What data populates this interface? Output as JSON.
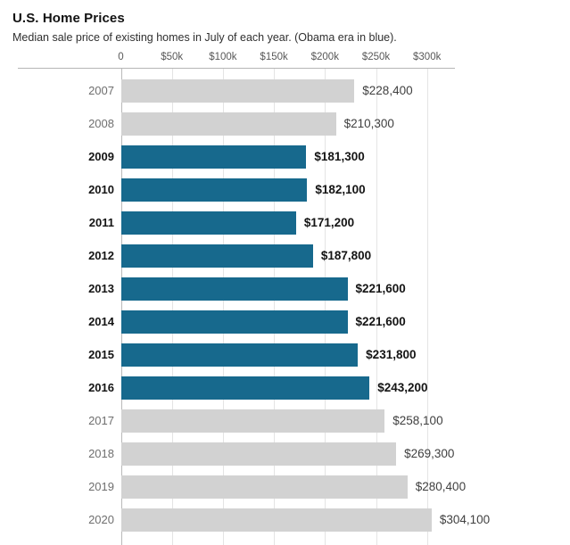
{
  "chart_data": {
    "type": "bar",
    "orientation": "horizontal",
    "title": "U.S. Home Prices",
    "subtitle": "Median sale price of existing homes in July of each year. (Obama era in blue).",
    "highlight_meaning": "Obama era in blue",
    "x_axis": {
      "ticks": [
        {
          "value": 0,
          "label": "0"
        },
        {
          "value": 50000,
          "label": "$50k"
        },
        {
          "value": 100000,
          "label": "$100k"
        },
        {
          "value": 150000,
          "label": "$150k"
        },
        {
          "value": 200000,
          "label": "$200k"
        },
        {
          "value": 250000,
          "label": "$250k"
        },
        {
          "value": 300000,
          "label": "$300k"
        }
      ],
      "grid": true
    },
    "rows": [
      {
        "year": "2007",
        "value": 228400,
        "label": "$228,400",
        "highlighted": false
      },
      {
        "year": "2008",
        "value": 210300,
        "label": "$210,300",
        "highlighted": false
      },
      {
        "year": "2009",
        "value": 181300,
        "label": "$181,300",
        "highlighted": true
      },
      {
        "year": "2010",
        "value": 182100,
        "label": "$182,100",
        "highlighted": true
      },
      {
        "year": "2011",
        "value": 171200,
        "label": "$171,200",
        "highlighted": true
      },
      {
        "year": "2012",
        "value": 187800,
        "label": "$187,800",
        "highlighted": true
      },
      {
        "year": "2013",
        "value": 221600,
        "label": "$221,600",
        "highlighted": true
      },
      {
        "year": "2014",
        "value": 221600,
        "label": "$221,600",
        "highlighted": true
      },
      {
        "year": "2015",
        "value": 231800,
        "label": "$231,800",
        "highlighted": true
      },
      {
        "year": "2016",
        "value": 243200,
        "label": "$243,200",
        "highlighted": true
      },
      {
        "year": "2017",
        "value": 258100,
        "label": "$258,100",
        "highlighted": false
      },
      {
        "year": "2018",
        "value": 269300,
        "label": "$269,300",
        "highlighted": false
      },
      {
        "year": "2019",
        "value": 280400,
        "label": "$280,400",
        "highlighted": false
      },
      {
        "year": "2020",
        "value": 304100,
        "label": "$304,100",
        "highlighted": false
      }
    ],
    "colors": {
      "highlight_bar": "#17698d",
      "default_bar": "#d2d2d2",
      "gridline": "#e4e4e4",
      "axis_line": "#b5b5b5"
    }
  }
}
